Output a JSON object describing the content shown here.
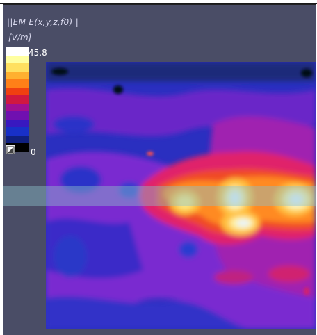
{
  "plot": {
    "title": "||EM E(x,y,z,f0)||",
    "unit": "[V/m]",
    "colorbar": {
      "max_label": "45.8",
      "min_label": "0",
      "colors": [
        "#ffffff",
        "#ffffa0",
        "#ffe060",
        "#ffb030",
        "#ff8018",
        "#f04010",
        "#d01840",
        "#a01090",
        "#7010b0",
        "#3818c0",
        "#1830c8",
        "#102080",
        "#000000"
      ],
      "lock_icon": "auto-range-toggle-icon"
    }
  }
}
